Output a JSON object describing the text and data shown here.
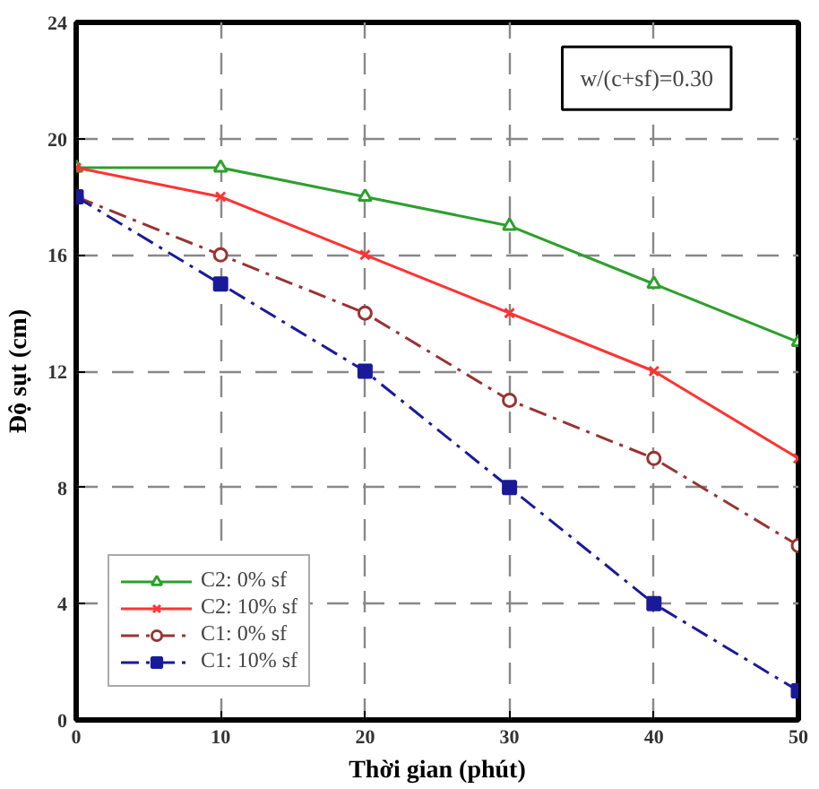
{
  "chart_data": {
    "type": "line",
    "xlabel": "Thời gian (phút)",
    "ylabel": "Độ sụt (cm)",
    "x": [
      0,
      10,
      20,
      30,
      40,
      50
    ],
    "series": [
      {
        "name": "C2: 0% sf",
        "color": "#2ca02c",
        "marker": "triangle",
        "line_style": "solid",
        "values": [
          19,
          19,
          18,
          17,
          15,
          13
        ]
      },
      {
        "name": "C2: 10% sf",
        "color": "#ff3333",
        "marker": "cross",
        "line_style": "solid",
        "values": [
          19,
          18,
          16,
          14,
          12,
          9
        ]
      },
      {
        "name": "C1: 0% sf",
        "color": "#993333",
        "marker": "circle",
        "line_style": "dashed",
        "values": [
          18,
          16,
          14,
          11,
          9,
          6
        ]
      },
      {
        "name": "C1: 10% sf",
        "color": "#1a1a99",
        "marker": "square",
        "line_style": "dashed",
        "values": [
          18,
          15,
          12,
          8,
          4,
          1
        ]
      }
    ],
    "xlim": [
      0,
      50
    ],
    "xticks": [
      0,
      10,
      20,
      30,
      40,
      50
    ],
    "ylim": [
      0,
      24
    ],
    "yticks": [
      0,
      4,
      8,
      12,
      16,
      20,
      24
    ],
    "grid": true,
    "legend": "bottom left",
    "annotations": [
      "w/(c+sf)=0.30"
    ]
  }
}
